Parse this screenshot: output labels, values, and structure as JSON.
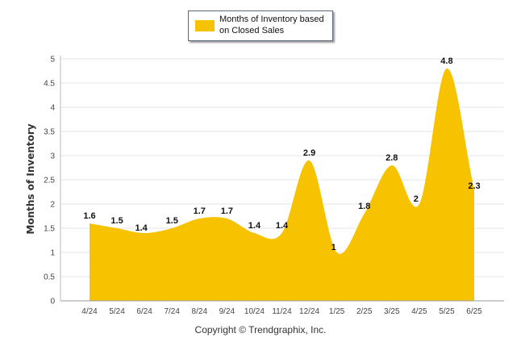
{
  "chart_data": {
    "type": "area",
    "categories": [
      "4/24",
      "5/24",
      "6/24",
      "7/24",
      "8/24",
      "9/24",
      "10/24",
      "11/24",
      "12/24",
      "1/25",
      "2/25",
      "3/25",
      "4/25",
      "5/25",
      "6/25"
    ],
    "series": [
      {
        "name": "Months of Inventory based on Closed Sales",
        "values": [
          1.6,
          1.5,
          1.4,
          1.5,
          1.7,
          1.7,
          1.4,
          1.4,
          2.9,
          1,
          1.8,
          2.8,
          2,
          4.8,
          2.3
        ],
        "labels": [
          "1.6",
          "1.5",
          "1.4",
          "1.5",
          "1.7",
          "1.7",
          "1.4",
          "1.4",
          "2.9",
          "1",
          "1.8",
          "2.8",
          "2",
          "4.8",
          "2.3"
        ]
      }
    ],
    "ylabel": "Months of Inventory",
    "xlabel": "",
    "ylim": [
      0,
      5
    ],
    "yticks": [
      0,
      0.5,
      1,
      1.5,
      2,
      2.5,
      3,
      3.5,
      4,
      4.5,
      5
    ],
    "ytick_labels": [
      "0",
      "0.5",
      "1",
      "1.5",
      "2",
      "2.5",
      "3",
      "3.5",
      "4",
      "4.5",
      "5"
    ],
    "grid": true,
    "legend_position": "top-center",
    "color": "#f7c200"
  },
  "legend": {
    "line1": "Months of Inventory based",
    "line2": "on Closed Sales"
  },
  "footer": {
    "copyright": "Copyright © Trendgraphix, Inc."
  }
}
